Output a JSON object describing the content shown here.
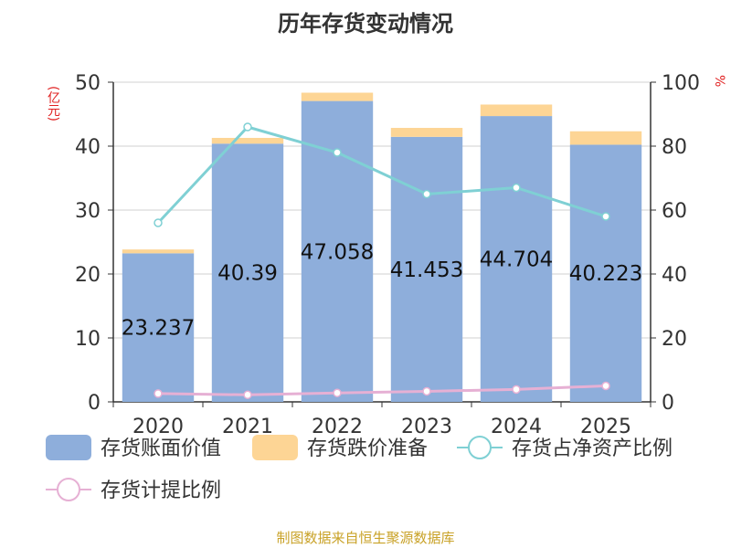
{
  "chart_data": {
    "type": "bar",
    "title": "历年存货变动情况",
    "categories": [
      "2020",
      "2021",
      "2022",
      "2023",
      "2024",
      "2025"
    ],
    "series": [
      {
        "name": "存货账面价值",
        "kind": "bar",
        "axis": "left",
        "stack": "a",
        "color": "#8eaedb",
        "values": [
          23.237,
          40.39,
          47.058,
          41.453,
          44.704,
          40.223
        ]
      },
      {
        "name": "存货跌价准备",
        "kind": "bar",
        "axis": "left",
        "stack": "a",
        "color": "#fdd595",
        "values": [
          0.6,
          0.9,
          1.3,
          1.4,
          1.8,
          2.1
        ]
      },
      {
        "name": "存货占净资产比例",
        "kind": "line",
        "axis": "right",
        "color": "#7fd0d4",
        "values": [
          56,
          86,
          78,
          65,
          67,
          58
        ]
      },
      {
        "name": "存货计提比例",
        "kind": "line",
        "axis": "right",
        "color": "#e6b0d4",
        "values": [
          2.6,
          2.2,
          2.8,
          3.3,
          3.9,
          5.0
        ]
      }
    ],
    "data_labels": [
      "23.237",
      "40.39",
      "47.058",
      "41.453",
      "44.704",
      "40.223"
    ],
    "y_left": {
      "min": 0,
      "max": 50,
      "ticks": [
        "0",
        "10",
        "20",
        "30",
        "40",
        "50"
      ],
      "unit": "(亿元)"
    },
    "y_right": {
      "min": 0,
      "max": 100,
      "ticks": [
        "0",
        "20",
        "40",
        "60",
        "80",
        "100"
      ],
      "unit": "%"
    },
    "grid": true,
    "legend_position": "bottom"
  },
  "source": "制图数据来自恒生聚源数据库"
}
